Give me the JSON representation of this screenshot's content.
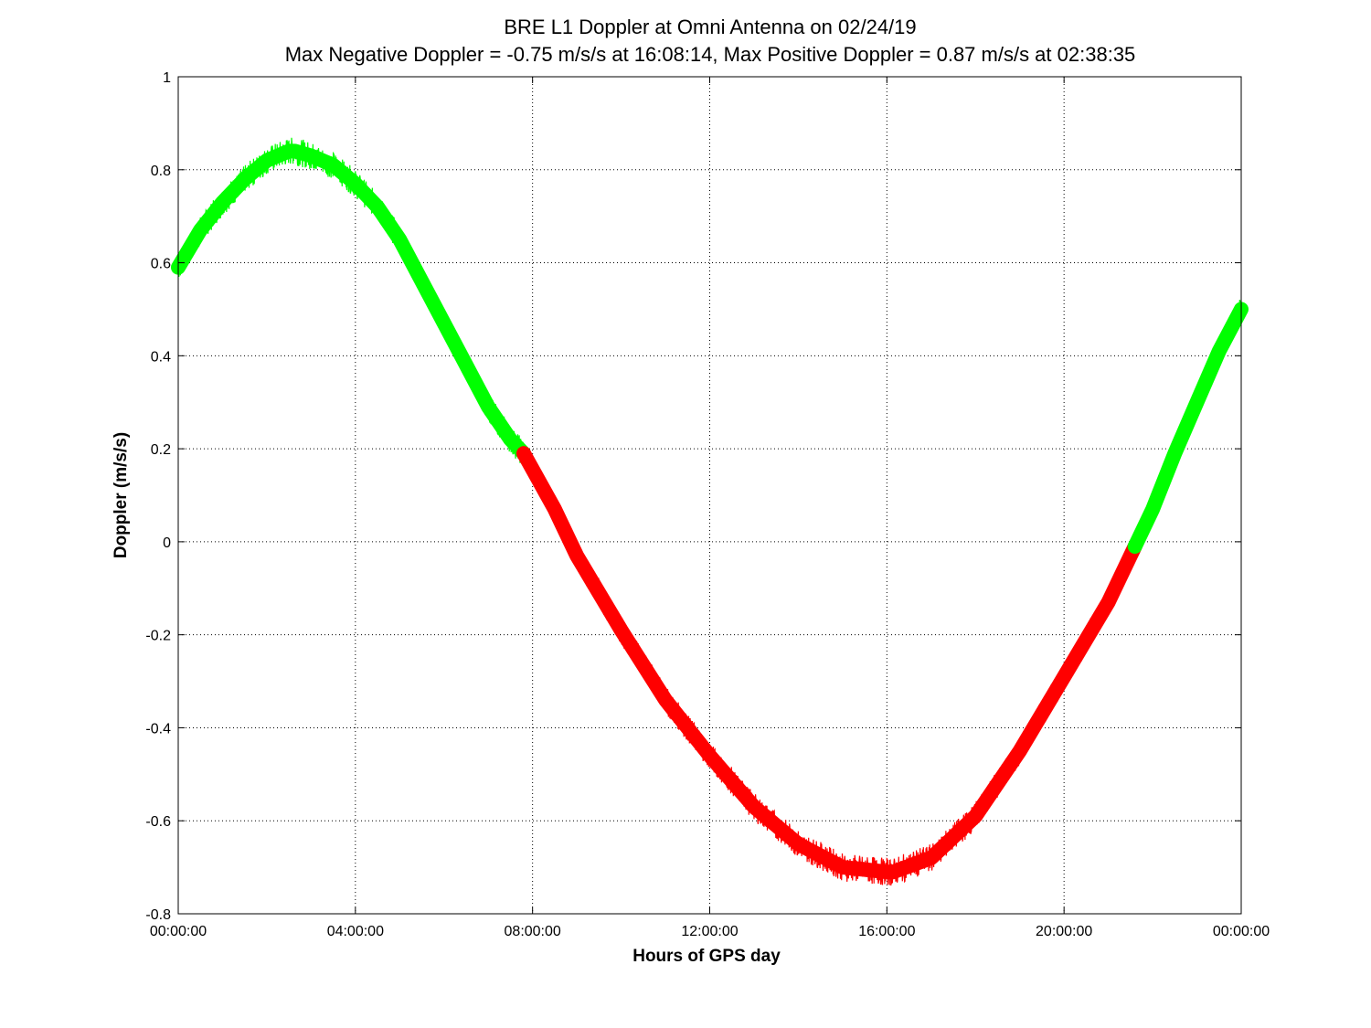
{
  "chart_data": {
    "type": "line",
    "title": "BRE  L1 Doppler at Omni Antenna on 02/24/19",
    "subtitle": "Max Negative Doppler = -0.75 m/s/s  at 16:08:14,   Max Positive Doppler = 0.87 m/s/s  at 02:38:35",
    "xlabel": "Hours of GPS day",
    "ylabel": "Doppler (m/s/s)",
    "x_ticks": [
      "00:00:00",
      "04:00:00",
      "08:00:00",
      "12:00:00",
      "16:00:00",
      "20:00:00",
      "00:00:00"
    ],
    "y_ticks": [
      "1",
      "0.8",
      "0.6",
      "0.4",
      "0.2",
      "0",
      "-0.2",
      "-0.4",
      "-0.6",
      "-0.8"
    ],
    "xlim": [
      0,
      24
    ],
    "ylim": [
      -0.8,
      1.0
    ],
    "grid": true,
    "colors": {
      "positive_segment": "#00ff00",
      "negative_segment": "#ff0000"
    },
    "series": [
      {
        "color": "#00ff00",
        "x": [
          0,
          0.5,
          1,
          1.5,
          2,
          2.5,
          2.64,
          3,
          3.5,
          4,
          4.5,
          5,
          5.5,
          6,
          6.5,
          7,
          7.5,
          7.8
        ],
        "y": [
          0.59,
          0.67,
          0.73,
          0.78,
          0.82,
          0.84,
          0.84,
          0.83,
          0.81,
          0.77,
          0.72,
          0.65,
          0.56,
          0.47,
          0.38,
          0.29,
          0.22,
          0.19
        ]
      },
      {
        "color": "#ff0000",
        "x": [
          7.8,
          8.5,
          9,
          10,
          11,
          12,
          13,
          14,
          15,
          16,
          16.14,
          17,
          18,
          19,
          20,
          21,
          21.6
        ],
        "y": [
          0.19,
          0.07,
          -0.03,
          -0.19,
          -0.34,
          -0.46,
          -0.57,
          -0.65,
          -0.7,
          -0.71,
          -0.71,
          -0.68,
          -0.59,
          -0.45,
          -0.29,
          -0.13,
          -0.01
        ]
      },
      {
        "color": "#00ff00",
        "x": [
          21.6,
          22,
          22.5,
          23,
          23.5,
          24
        ],
        "y": [
          -0.01,
          0.07,
          0.19,
          0.3,
          0.41,
          0.5
        ]
      }
    ]
  }
}
